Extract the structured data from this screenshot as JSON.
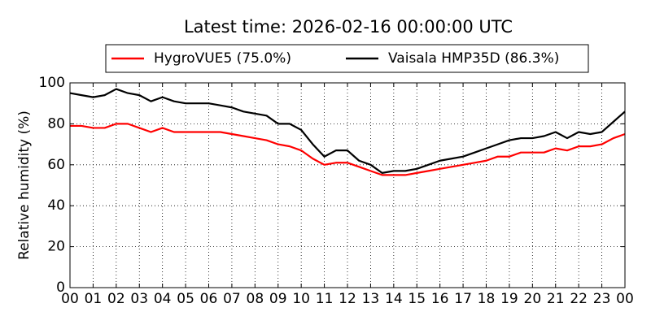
{
  "chart_data": {
    "type": "line",
    "title": "Latest time: 2026-02-16 00:00:00 UTC",
    "ylabel": "Relative humidity (%)",
    "x": [
      0,
      0.5,
      1,
      1.5,
      2,
      2.5,
      3,
      3.5,
      4,
      4.5,
      5,
      5.5,
      6,
      6.5,
      7,
      7.5,
      8,
      8.5,
      9,
      9.5,
      10,
      10.5,
      11,
      11.5,
      12,
      12.5,
      13,
      13.5,
      14,
      14.5,
      15,
      15.5,
      16,
      16.5,
      17,
      17.5,
      18,
      18.5,
      19,
      19.5,
      20,
      20.5,
      21,
      21.5,
      22,
      22.5,
      23,
      23.5,
      24
    ],
    "series": [
      {
        "name": "HygroVUE5 (75.0%)",
        "color": "#ff0000",
        "values": [
          79,
          79,
          78,
          78,
          80,
          80,
          78,
          76,
          78,
          76,
          76,
          76,
          76,
          76,
          75,
          74,
          73,
          72,
          70,
          69,
          67,
          63,
          60,
          61,
          61,
          59,
          57,
          55,
          55,
          55,
          56,
          57,
          58,
          59,
          60,
          61,
          62,
          64,
          64,
          66,
          66,
          66,
          68,
          67,
          69,
          69,
          70,
          73,
          75
        ]
      },
      {
        "name": "Vaisala HMP35D (86.3%)",
        "color": "#000000",
        "values": [
          95,
          94,
          93,
          94,
          97,
          95,
          94,
          91,
          93,
          91,
          90,
          90,
          90,
          89,
          88,
          86,
          85,
          84,
          80,
          80,
          77,
          70,
          64,
          67,
          67,
          62,
          60,
          56,
          57,
          57,
          58,
          60,
          62,
          63,
          64,
          66,
          68,
          70,
          72,
          73,
          73,
          74,
          76,
          73,
          76,
          75,
          76,
          81,
          86
        ]
      }
    ],
    "xlim": [
      0,
      24
    ],
    "xticks": [
      {
        "value": 0,
        "label": "00"
      },
      {
        "value": 1,
        "label": "01"
      },
      {
        "value": 2,
        "label": "02"
      },
      {
        "value": 3,
        "label": "03"
      },
      {
        "value": 4,
        "label": "04"
      },
      {
        "value": 5,
        "label": "05"
      },
      {
        "value": 6,
        "label": "06"
      },
      {
        "value": 7,
        "label": "07"
      },
      {
        "value": 8,
        "label": "08"
      },
      {
        "value": 9,
        "label": "09"
      },
      {
        "value": 10,
        "label": "10"
      },
      {
        "value": 11,
        "label": "11"
      },
      {
        "value": 12,
        "label": "12"
      },
      {
        "value": 13,
        "label": "13"
      },
      {
        "value": 14,
        "label": "14"
      },
      {
        "value": 15,
        "label": "15"
      },
      {
        "value": 16,
        "label": "16"
      },
      {
        "value": 17,
        "label": "17"
      },
      {
        "value": 18,
        "label": "18"
      },
      {
        "value": 19,
        "label": "19"
      },
      {
        "value": 20,
        "label": "20"
      },
      {
        "value": 21,
        "label": "21"
      },
      {
        "value": 22,
        "label": "22"
      },
      {
        "value": 23,
        "label": "23"
      },
      {
        "value": 24,
        "label": "00"
      }
    ],
    "ylim": [
      0,
      100
    ],
    "yticks": [
      0,
      20,
      40,
      60,
      80,
      100
    ],
    "grid": true,
    "legend": "top"
  }
}
